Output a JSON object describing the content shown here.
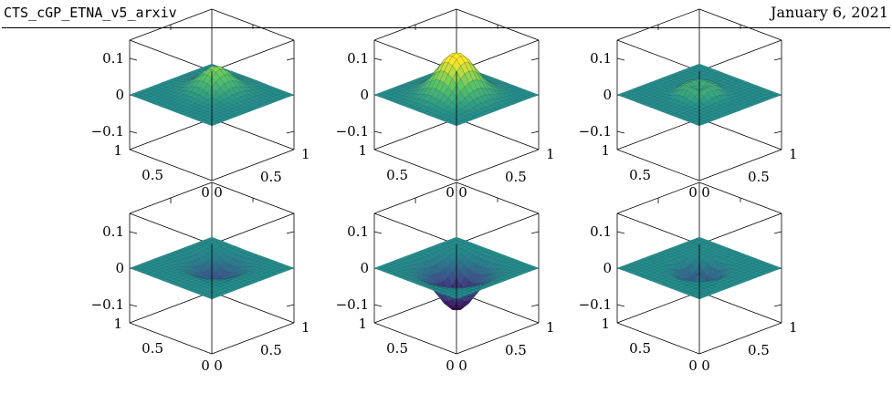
{
  "header": {
    "left_text": "CTS_cGP_ETNA_v5_arxiv",
    "right_text": "January 6, 2021"
  },
  "colormap": {
    "name": "viridis",
    "stops": [
      "#440154",
      "#3b528b",
      "#21918c",
      "#5ec962",
      "#fde725"
    ]
  },
  "chart_data": [
    {
      "type": "surface",
      "panel": "row1-col1",
      "title": "",
      "x_ticks": [
        "0",
        "0.5",
        "1"
      ],
      "y_ticks": [
        "0",
        "0.5",
        "1"
      ],
      "z_ticks": [
        "−0.1",
        "0",
        "0.1"
      ],
      "xlim": [
        0,
        1
      ],
      "ylim": [
        0,
        1
      ],
      "zlim": [
        -0.15,
        0.15
      ],
      "peak": {
        "x": 0.6,
        "y": 0.55,
        "z": 0.065,
        "width": 0.14,
        "shape": "bump"
      }
    },
    {
      "type": "surface",
      "panel": "row1-col2",
      "title": "",
      "x_ticks": [
        "0",
        "0.5",
        "1"
      ],
      "y_ticks": [
        "0",
        "0.5",
        "1"
      ],
      "z_ticks": [
        "−0.1",
        "0",
        "0.1"
      ],
      "xlim": [
        0,
        1
      ],
      "ylim": [
        0,
        1
      ],
      "zlim": [
        -0.15,
        0.15
      ],
      "peak": {
        "x": 0.5,
        "y": 0.5,
        "z": 0.1,
        "width": 0.5,
        "shape": "dome"
      }
    },
    {
      "type": "surface",
      "panel": "row1-col3",
      "title": "",
      "x_ticks": [
        "0",
        "0.5",
        "1"
      ],
      "y_ticks": [
        "0",
        "0.5",
        "1"
      ],
      "z_ticks": [
        "−0.1",
        "0",
        "0.1"
      ],
      "xlim": [
        0,
        1
      ],
      "ylim": [
        0,
        1
      ],
      "zlim": [
        -0.15,
        0.15
      ],
      "peak": {
        "x": 0.5,
        "y": 0.5,
        "z": 0.03,
        "width": 0.22,
        "shape": "ring"
      }
    },
    {
      "type": "surface",
      "panel": "row2-col1",
      "title": "",
      "x_ticks": [
        "0",
        "0.5",
        "1"
      ],
      "y_ticks": [
        "0",
        "0.5",
        "1"
      ],
      "z_ticks": [
        "−0.1",
        "0",
        "0.1"
      ],
      "xlim": [
        0,
        1
      ],
      "ylim": [
        0,
        1
      ],
      "zlim": [
        -0.15,
        0.15
      ],
      "peak": {
        "x": 0.6,
        "y": 0.55,
        "z": -0.065,
        "width": 0.14,
        "shape": "bump"
      }
    },
    {
      "type": "surface",
      "panel": "row2-col2",
      "title": "",
      "x_ticks": [
        "0",
        "0.5",
        "1"
      ],
      "y_ticks": [
        "0",
        "0.5",
        "1"
      ],
      "z_ticks": [
        "−0.1",
        "0",
        "0.1"
      ],
      "xlim": [
        0,
        1
      ],
      "ylim": [
        0,
        1
      ],
      "zlim": [
        -0.15,
        0.15
      ],
      "peak": {
        "x": 0.5,
        "y": 0.5,
        "z": -0.1,
        "width": 0.5,
        "shape": "dome"
      }
    },
    {
      "type": "surface",
      "panel": "row2-col3",
      "title": "",
      "x_ticks": [
        "0",
        "0.5",
        "1"
      ],
      "y_ticks": [
        "0",
        "0.5",
        "1"
      ],
      "z_ticks": [
        "−0.1",
        "0",
        "0.1"
      ],
      "xlim": [
        0,
        1
      ],
      "ylim": [
        0,
        1
      ],
      "zlim": [
        -0.15,
        0.15
      ],
      "peak": {
        "x": 0.5,
        "y": 0.5,
        "z": -0.05,
        "width": 0.22,
        "shape": "ring"
      }
    }
  ]
}
